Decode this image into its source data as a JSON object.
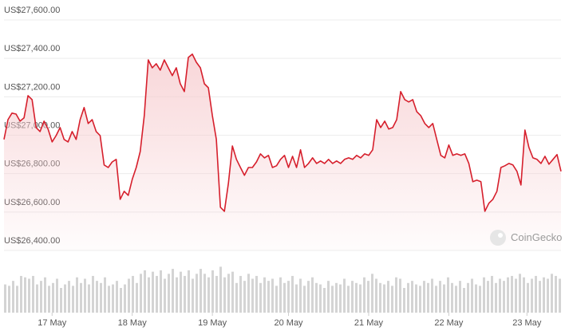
{
  "chart_data": {
    "type": "line",
    "color": "#d61f2c",
    "fill_color": "#f6c9cc",
    "grid": true,
    "ylim": [
      26400,
      27600
    ],
    "yticks": [
      {
        "value": 26400,
        "label": "US$26,400.00"
      },
      {
        "value": 26600,
        "label": "US$26,600.00"
      },
      {
        "value": 26800,
        "label": "US$26,800.00"
      },
      {
        "value": 27000,
        "label": "US$27,000.00"
      },
      {
        "value": 27200,
        "label": "US$27,200.00"
      },
      {
        "value": 27400,
        "label": "US$27,400.00"
      },
      {
        "value": 27600,
        "label": "US$27,600.00"
      }
    ],
    "xticks": [
      {
        "value": 12,
        "label": "17 May"
      },
      {
        "value": 32,
        "label": "18 May"
      },
      {
        "value": 52,
        "label": "19 May"
      },
      {
        "value": 71,
        "label": "20 May"
      },
      {
        "value": 91,
        "label": "21 May"
      },
      {
        "value": 111,
        "label": "22 May"
      },
      {
        "value": 130.5,
        "label": "23 May"
      }
    ],
    "values": [
      26978,
      27081,
      27115,
      27110,
      27073,
      27090,
      27206,
      27185,
      27040,
      27019,
      27073,
      27032,
      26965,
      26998,
      27040,
      26978,
      26965,
      27019,
      26978,
      27081,
      27144,
      27061,
      27081,
      27019,
      26998,
      26845,
      26832,
      26861,
      26874,
      26666,
      26708,
      26687,
      26770,
      26832,
      26915,
      27102,
      27392,
      27351,
      27372,
      27339,
      27392,
      27351,
      27310,
      27351,
      27268,
      27227,
      27405,
      27422,
      27380,
      27351,
      27268,
      27247,
      27102,
      26978,
      26625,
      26604,
      26749,
      26944,
      26874,
      26832,
      26791,
      26832,
      26832,
      26861,
      26903,
      26882,
      26895,
      26832,
      26841,
      26874,
      26895,
      26832,
      26890,
      26832,
      26924,
      26832,
      26853,
      26882,
      26853,
      26866,
      26853,
      26874,
      26853,
      26866,
      26853,
      26874,
      26882,
      26874,
      26895,
      26882,
      26903,
      26895,
      26924,
      27081,
      27040,
      27073,
      27032,
      27040,
      27081,
      27227,
      27185,
      27173,
      27185,
      27123,
      27102,
      27061,
      27040,
      27061,
      26978,
      26895,
      26882,
      26949,
      26895,
      26903,
      26895,
      26903,
      26853,
      26758,
      26766,
      26758,
      26604,
      26646,
      26666,
      26708,
      26832,
      26841,
      26853,
      26845,
      26812,
      26741,
      27027,
      26936,
      26882,
      26874,
      26853,
      26890,
      26849,
      26874,
      26899,
      26812
    ],
    "volume": {
      "color": "#d4d4d4",
      "ylim": [
        0,
        70
      ],
      "values": [
        40,
        38,
        45,
        38,
        52,
        50,
        48,
        52,
        40,
        45,
        50,
        38,
        42,
        48,
        35,
        40,
        45,
        38,
        50,
        42,
        48,
        40,
        52,
        45,
        42,
        50,
        38,
        40,
        45,
        35,
        40,
        48,
        52,
        42,
        55,
        60,
        50,
        58,
        52,
        60,
        48,
        55,
        62,
        50,
        58,
        52,
        60,
        48,
        55,
        62,
        55,
        50,
        60,
        52,
        65,
        50,
        55,
        58,
        42,
        52,
        45,
        55,
        48,
        52,
        42,
        50,
        45,
        48,
        38,
        50,
        42,
        45,
        52,
        40,
        48,
        38,
        45,
        50,
        42,
        40,
        35,
        45,
        38,
        42,
        40,
        48,
        38,
        45,
        42,
        40,
        50,
        45,
        55,
        48,
        42,
        40,
        45,
        38,
        50,
        48,
        35,
        42,
        45,
        40,
        38,
        45,
        42,
        48,
        38,
        45,
        40,
        50,
        42,
        38,
        45,
        35,
        42,
        48,
        40,
        38,
        50,
        45,
        52,
        42,
        48,
        45,
        50,
        52,
        48,
        55,
        50,
        42,
        48,
        52,
        45,
        50,
        48,
        55,
        52,
        48
      ]
    },
    "watermark": "CoinGecko"
  }
}
